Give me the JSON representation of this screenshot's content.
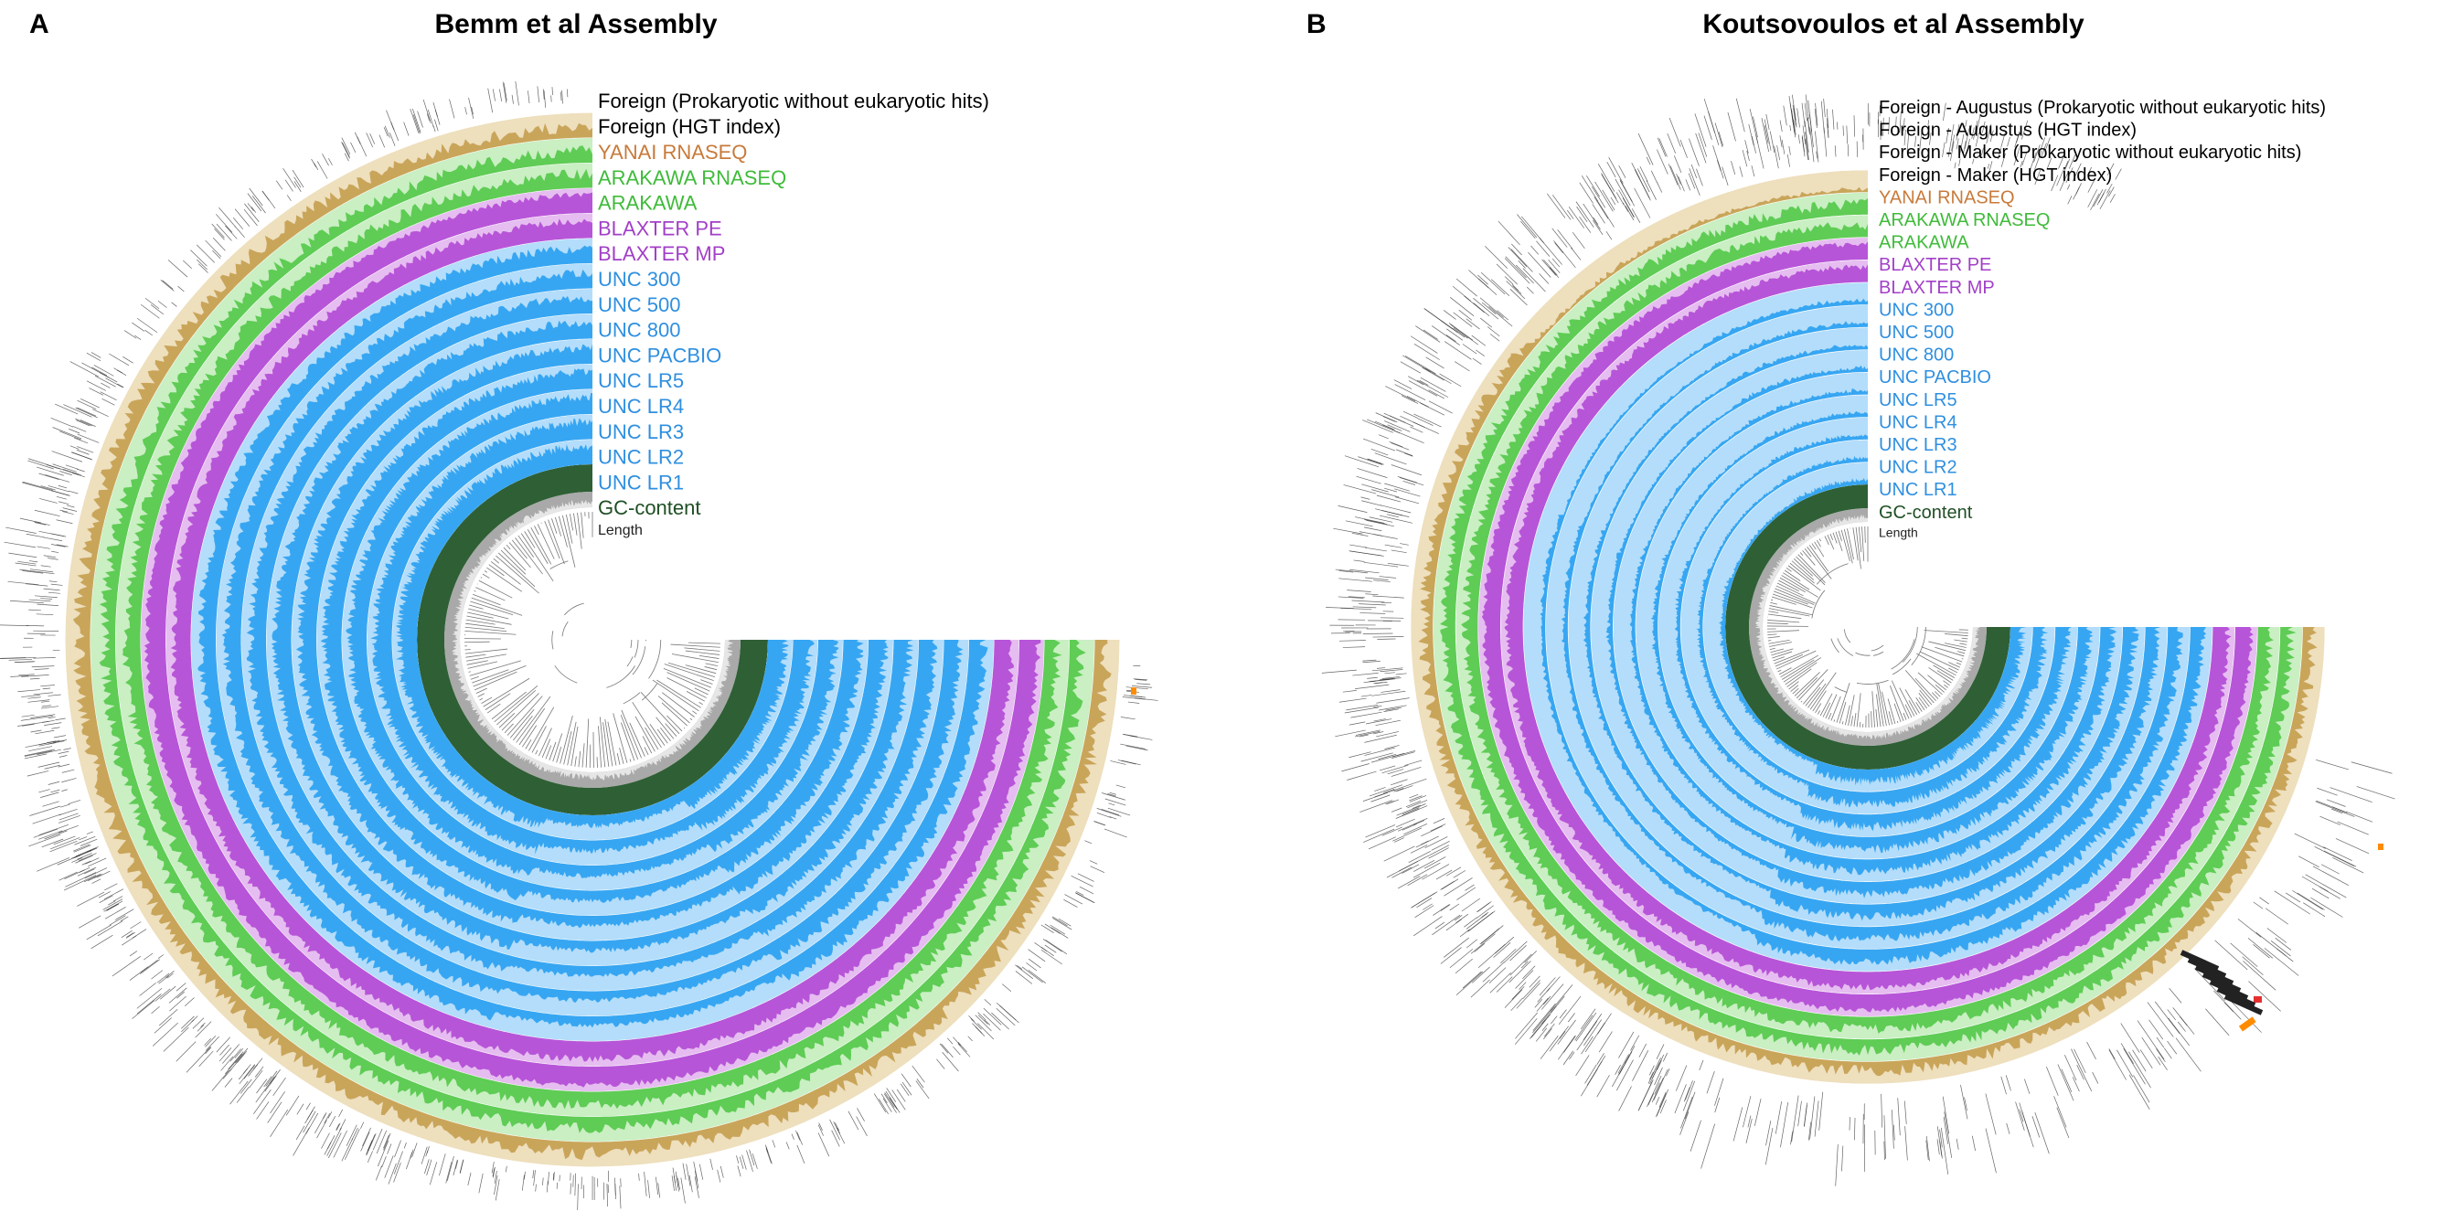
{
  "colors": {
    "yanai_bg": "#eedfbd",
    "yanai_fg": "#c9a55a",
    "yanai_text": "#c87a3a",
    "arakawa_bg": "#c9efc3",
    "arakawa_fg": "#5fcc55",
    "arakawa_text": "#3fbb3a",
    "blaxter_bg": "#e6bdf0",
    "blaxter_fg": "#b755d8",
    "blaxter_text": "#a23fc8",
    "unc_bg": "#b3ddfa",
    "unc_fg": "#37a6f2",
    "unc_text": "#2f8fe0",
    "gc_bg": "#2f5f35",
    "gc_text": "#1f4f25",
    "len_bg": "#a9a9a9",
    "len_fg": "#e6e6e6",
    "foreign": "#333333",
    "marker_orange": "#ff8c00",
    "marker_red": "#e53030"
  },
  "panels": [
    {
      "letter": "A",
      "title": "Bemm et al Assembly",
      "labels": [
        {
          "text": "Foreign (Prokaryotic without eukaryotic hits)",
          "color": "#000000"
        },
        {
          "text": "Foreign (HGT index)",
          "color": "#000000"
        },
        {
          "text": "YANAI RNASEQ",
          "color": "#c87a3a"
        },
        {
          "text": "ARAKAWA RNASEQ",
          "color": "#3fbb3a"
        },
        {
          "text": "ARAKAWA",
          "color": "#3fbb3a"
        },
        {
          "text": "BLAXTER PE",
          "color": "#a23fc8"
        },
        {
          "text": "BLAXTER MP",
          "color": "#a23fc8"
        },
        {
          "text": "UNC 300",
          "color": "#2f8fe0"
        },
        {
          "text": "UNC 500",
          "color": "#2f8fe0"
        },
        {
          "text": "UNC 800",
          "color": "#2f8fe0"
        },
        {
          "text": "UNC PACBIO",
          "color": "#2f8fe0"
        },
        {
          "text": "UNC LR5",
          "color": "#2f8fe0"
        },
        {
          "text": "UNC LR4",
          "color": "#2f8fe0"
        },
        {
          "text": "UNC LR3",
          "color": "#2f8fe0"
        },
        {
          "text": "UNC LR2",
          "color": "#2f8fe0"
        },
        {
          "text": "UNC LR1",
          "color": "#2f8fe0"
        },
        {
          "text": "GC-content",
          "color": "#1f4f25"
        },
        {
          "text": "Length",
          "color": "#222222"
        }
      ]
    },
    {
      "letter": "B",
      "title": "Koutsovoulos et al Assembly",
      "labels": [
        {
          "text": "Foreign - Augustus (Prokaryotic without eukaryotic hits)",
          "color": "#000000"
        },
        {
          "text": "Foreign - Augustus (HGT index)",
          "color": "#000000"
        },
        {
          "text": "Foreign - Maker (Prokaryotic without eukaryotic hits)",
          "color": "#000000"
        },
        {
          "text": "Foreign - Maker (HGT index)",
          "color": "#000000"
        },
        {
          "text": "YANAI RNASEQ",
          "color": "#c87a3a"
        },
        {
          "text": "ARAKAWA RNASEQ",
          "color": "#3fbb3a"
        },
        {
          "text": "ARAKAWA",
          "color": "#3fbb3a"
        },
        {
          "text": "BLAXTER PE",
          "color": "#a23fc8"
        },
        {
          "text": "BLAXTER MP",
          "color": "#a23fc8"
        },
        {
          "text": "UNC 300",
          "color": "#2f8fe0"
        },
        {
          "text": "UNC 500",
          "color": "#2f8fe0"
        },
        {
          "text": "UNC 800",
          "color": "#2f8fe0"
        },
        {
          "text": "UNC PACBIO",
          "color": "#2f8fe0"
        },
        {
          "text": "UNC LR5",
          "color": "#2f8fe0"
        },
        {
          "text": "UNC LR4",
          "color": "#2f8fe0"
        },
        {
          "text": "UNC LR3",
          "color": "#2f8fe0"
        },
        {
          "text": "UNC LR2",
          "color": "#2f8fe0"
        },
        {
          "text": "UNC LR1",
          "color": "#2f8fe0"
        },
        {
          "text": "GC-content",
          "color": "#1f4f25"
        },
        {
          "text": "Length",
          "color": "#222222"
        }
      ]
    }
  ]
}
